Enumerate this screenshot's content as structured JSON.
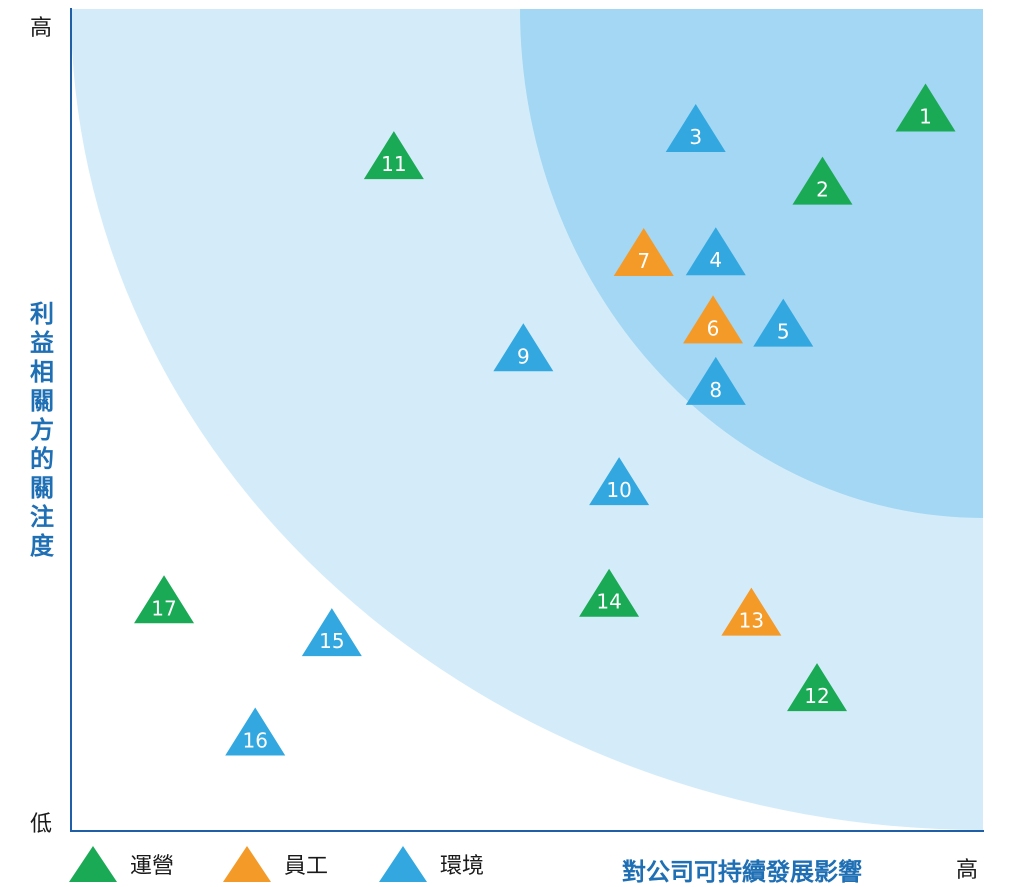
{
  "chart_data": {
    "type": "scatter",
    "title": "",
    "xlabel": "對公司可持續發展影響",
    "ylabel": "利益相關方的關注度",
    "x_ticks": {
      "high": "高"
    },
    "y_ticks": {
      "high": "高",
      "low": "低"
    },
    "xlim": [
      0,
      100
    ],
    "ylim": [
      0,
      100
    ],
    "grid": false,
    "legend_position": "bottom-left",
    "categories": [
      {
        "key": "operations",
        "name": "運營",
        "color": "#1aaa55"
      },
      {
        "key": "staff",
        "name": "員工",
        "color": "#f39a28"
      },
      {
        "key": "environment",
        "name": "環境",
        "color": "#33a8e0"
      }
    ],
    "zones": [
      {
        "level": "medium",
        "color": "#d4ecf9"
      },
      {
        "level": "high",
        "color": "#a3d7f3"
      }
    ],
    "points": [
      {
        "label": "1",
        "category": "operations",
        "x": 93.7,
        "y": 88.0
      },
      {
        "label": "2",
        "category": "operations",
        "x": 82.4,
        "y": 79.1
      },
      {
        "label": "3",
        "category": "environment",
        "x": 68.5,
        "y": 85.5
      },
      {
        "label": "4",
        "category": "environment",
        "x": 70.7,
        "y": 70.5
      },
      {
        "label": "5",
        "category": "environment",
        "x": 78.1,
        "y": 61.8
      },
      {
        "label": "6",
        "category": "staff",
        "x": 70.4,
        "y": 62.2
      },
      {
        "label": "7",
        "category": "staff",
        "x": 62.8,
        "y": 70.4
      },
      {
        "label": "8",
        "category": "environment",
        "x": 70.7,
        "y": 54.7
      },
      {
        "label": "9",
        "category": "environment",
        "x": 49.6,
        "y": 58.8
      },
      {
        "label": "10",
        "category": "environment",
        "x": 60.1,
        "y": 42.5
      },
      {
        "label": "11",
        "category": "operations",
        "x": 35.4,
        "y": 82.2
      },
      {
        "label": "12",
        "category": "operations",
        "x": 81.8,
        "y": 17.4
      },
      {
        "label": "13",
        "category": "staff",
        "x": 74.6,
        "y": 26.6
      },
      {
        "label": "14",
        "category": "operations",
        "x": 59.0,
        "y": 28.9
      },
      {
        "label": "15",
        "category": "environment",
        "x": 28.6,
        "y": 24.1
      },
      {
        "label": "16",
        "category": "environment",
        "x": 20.2,
        "y": 12.0
      },
      {
        "label": "17",
        "category": "operations",
        "x": 10.2,
        "y": 28.1
      }
    ]
  }
}
